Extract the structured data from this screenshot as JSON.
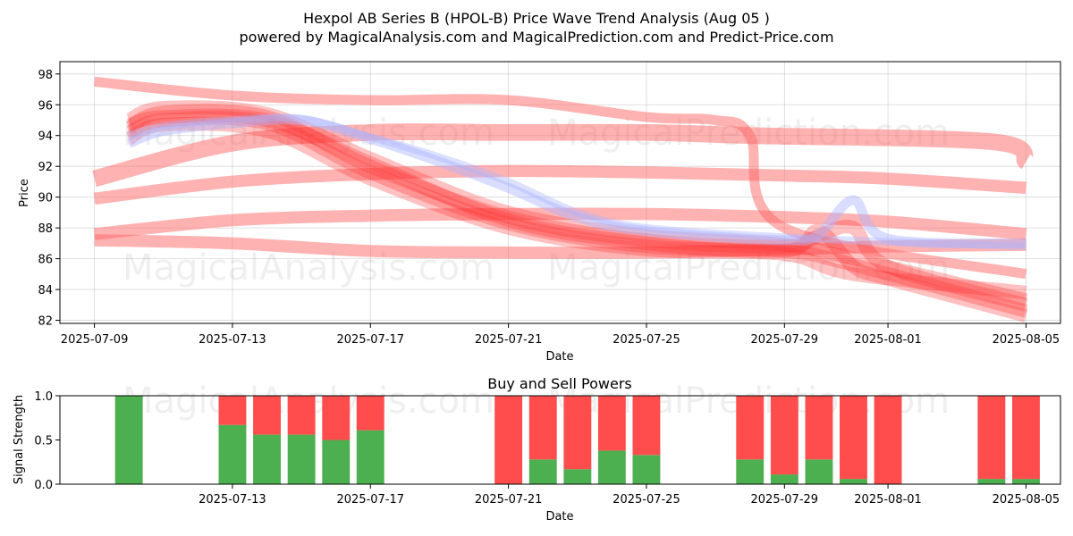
{
  "title_line1": "Hexpol AB Series B (HPOL-B) Price Wave Trend Analysis (Aug 05 )",
  "title_line2": "powered by MagicalAnalysis.com and MagicalPrediction.com and Predict-Price.com",
  "watermarks": [
    "MagicalAnalysis.com",
    "MagicalPrediction.com"
  ],
  "colors": {
    "bull": "#4caf50",
    "bear": "#ff4d4d",
    "band": "#ff6666",
    "blue_band": "#aab4ff"
  },
  "chart_data": [
    {
      "type": "line",
      "title": "",
      "xlabel": "Date",
      "ylabel": "Price",
      "xlim": [
        "2025-07-08",
        "2025-08-06"
      ],
      "ylim": [
        81.8,
        98.8
      ],
      "x_ticks": [
        "2025-07-09",
        "2025-07-13",
        "2025-07-17",
        "2025-07-21",
        "2025-07-25",
        "2025-07-29",
        "2025-08-01",
        "2025-08-05"
      ],
      "y_ticks": [
        82,
        84,
        86,
        88,
        90,
        92,
        94,
        96,
        98
      ],
      "grid": true,
      "series": [
        {
          "color": "#ff6666",
          "width": 1.3,
          "opacity": 0.5,
          "x": [
            "2025-07-09",
            "2025-07-13",
            "2025-07-17",
            "2025-07-21",
            "2025-07-25",
            "2025-07-27",
            "2025-07-28",
            "2025-07-29",
            "2025-08-05"
          ],
          "values": [
            97.5,
            96.6,
            96.3,
            96.3,
            95.2,
            95.0,
            94.0,
            88.0,
            85.0
          ]
        },
        {
          "color": "#ff6666",
          "width": 2.2,
          "opacity": 0.5,
          "x": [
            "2025-07-09",
            "2025-07-13",
            "2025-07-17",
            "2025-07-21",
            "2025-07-25",
            "2025-07-28",
            "2025-08-04",
            "2025-08-05"
          ],
          "values": [
            91.2,
            93.5,
            94.2,
            94.2,
            94.2,
            94.0,
            93.6,
            92.3
          ]
        },
        {
          "color": "#ff6666",
          "width": 1.6,
          "opacity": 0.5,
          "x": [
            "2025-07-09",
            "2025-07-13",
            "2025-07-17",
            "2025-07-21",
            "2025-07-25",
            "2025-07-29",
            "2025-08-01",
            "2025-08-05"
          ],
          "values": [
            89.9,
            91.0,
            91.5,
            91.7,
            91.6,
            91.4,
            91.2,
            90.6
          ]
        },
        {
          "color": "#ff6666",
          "width": 1.6,
          "opacity": 0.5,
          "x": [
            "2025-07-09",
            "2025-07-13",
            "2025-07-17",
            "2025-07-21",
            "2025-07-25",
            "2025-07-29",
            "2025-08-01",
            "2025-08-05"
          ],
          "values": [
            87.6,
            88.5,
            88.8,
            88.9,
            88.9,
            88.7,
            88.4,
            87.6
          ]
        },
        {
          "color": "#ff6666",
          "width": 1.6,
          "opacity": 0.5,
          "x": [
            "2025-07-09",
            "2025-07-13",
            "2025-07-17",
            "2025-07-21",
            "2025-07-25",
            "2025-07-29",
            "2025-08-01",
            "2025-08-05"
          ],
          "values": [
            87.2,
            87.0,
            86.5,
            86.4,
            86.4,
            86.6,
            86.8,
            86.9
          ]
        },
        {
          "color": "#ff3333",
          "width": 1.8,
          "opacity": 0.3,
          "x": [
            "2025-07-10",
            "2025-07-11",
            "2025-07-14",
            "2025-07-17",
            "2025-07-21",
            "2025-07-25",
            "2025-07-29",
            "2025-07-30",
            "2025-07-31",
            "2025-08-01",
            "2025-08-05"
          ],
          "values": [
            94.5,
            95.5,
            95.2,
            92.0,
            88.7,
            87.2,
            86.8,
            87.5,
            88.0,
            85.5,
            83.0
          ]
        },
        {
          "color": "#ff3333",
          "width": 1.8,
          "opacity": 0.3,
          "x": [
            "2025-07-10",
            "2025-07-11",
            "2025-07-14",
            "2025-07-17",
            "2025-07-21",
            "2025-07-25",
            "2025-07-29",
            "2025-07-31",
            "2025-08-05"
          ],
          "values": [
            95.0,
            95.8,
            95.4,
            92.5,
            89.0,
            87.5,
            86.9,
            86.0,
            83.3
          ]
        },
        {
          "color": "#ff3333",
          "width": 1.8,
          "opacity": 0.3,
          "x": [
            "2025-07-10",
            "2025-07-11",
            "2025-07-14",
            "2025-07-17",
            "2025-07-21",
            "2025-07-25",
            "2025-07-29",
            "2025-07-31",
            "2025-08-05"
          ],
          "values": [
            94.2,
            95.0,
            94.8,
            91.6,
            88.3,
            86.8,
            86.5,
            85.6,
            82.6
          ]
        },
        {
          "color": "#ff3333",
          "width": 1.8,
          "opacity": 0.3,
          "x": [
            "2025-07-10",
            "2025-07-11",
            "2025-07-14",
            "2025-07-17",
            "2025-07-21",
            "2025-07-25",
            "2025-07-29",
            "2025-07-31",
            "2025-08-05"
          ],
          "values": [
            93.8,
            94.7,
            94.3,
            91.2,
            88.0,
            86.6,
            86.3,
            85.0,
            83.8
          ]
        },
        {
          "color": "#ff3333",
          "width": 1.8,
          "opacity": 0.3,
          "x": [
            "2025-07-10",
            "2025-07-11",
            "2025-07-14",
            "2025-07-17",
            "2025-07-21",
            "2025-07-25",
            "2025-07-29",
            "2025-07-30",
            "2025-07-31",
            "2025-08-01",
            "2025-08-05"
          ],
          "values": [
            94.7,
            95.2,
            95.0,
            92.2,
            88.5,
            87.0,
            86.5,
            87.8,
            85.5,
            84.7,
            82.3
          ]
        },
        {
          "color": "#aab4ff",
          "width": 1.3,
          "opacity": 0.45,
          "x": [
            "2025-07-10",
            "2025-07-11",
            "2025-07-13",
            "2025-07-15",
            "2025-07-17",
            "2025-07-19",
            "2025-07-21",
            "2025-07-23",
            "2025-07-25",
            "2025-07-29",
            "2025-07-30",
            "2025-07-31",
            "2025-08-01",
            "2025-08-05"
          ],
          "values": [
            93.5,
            94.3,
            94.8,
            95.0,
            93.8,
            92.3,
            90.6,
            88.7,
            87.8,
            87.2,
            87.6,
            89.8,
            87.3,
            87.0
          ]
        },
        {
          "color": "#aab4ff",
          "width": 1.0,
          "opacity": 0.4,
          "x": [
            "2025-07-10",
            "2025-07-11",
            "2025-07-13",
            "2025-07-15",
            "2025-07-17",
            "2025-07-19",
            "2025-07-21",
            "2025-07-23",
            "2025-07-25",
            "2025-07-29",
            "2025-08-01",
            "2025-08-05"
          ],
          "values": [
            94.0,
            94.6,
            95.0,
            95.1,
            93.9,
            92.6,
            91.0,
            89.0,
            88.0,
            87.4,
            87.1,
            86.8
          ]
        }
      ]
    },
    {
      "type": "bar",
      "title": "Buy and Sell Powers",
      "xlabel": "Date",
      "ylabel": "Signal Strength",
      "xlim": [
        "2025-07-08",
        "2025-08-06"
      ],
      "ylim": [
        0,
        1
      ],
      "x_ticks": [
        "2025-07-13",
        "2025-07-17",
        "2025-07-21",
        "2025-07-25",
        "2025-07-29",
        "2025-08-01",
        "2025-08-05"
      ],
      "y_ticks": [
        "0.0",
        "0.5",
        "1.0"
      ],
      "grid": false,
      "dates": [
        "2025-07-10",
        "2025-07-13",
        "2025-07-14",
        "2025-07-15",
        "2025-07-16",
        "2025-07-17",
        "2025-07-21",
        "2025-07-22",
        "2025-07-23",
        "2025-07-24",
        "2025-07-25",
        "2025-07-28",
        "2025-07-29",
        "2025-07-30",
        "2025-07-31",
        "2025-08-01",
        "2025-08-04",
        "2025-08-05"
      ],
      "buy": [
        1.0,
        0.67,
        0.56,
        0.56,
        0.5,
        0.61,
        0.0,
        0.28,
        0.17,
        0.38,
        0.33,
        0.28,
        0.11,
        0.28,
        0.06,
        0.0,
        0.06,
        0.06
      ],
      "sell": [
        0.0,
        0.33,
        0.44,
        0.44,
        0.5,
        0.39,
        1.0,
        0.72,
        0.83,
        0.62,
        0.67,
        0.72,
        0.89,
        0.72,
        0.94,
        1.0,
        0.94,
        0.94
      ]
    }
  ]
}
